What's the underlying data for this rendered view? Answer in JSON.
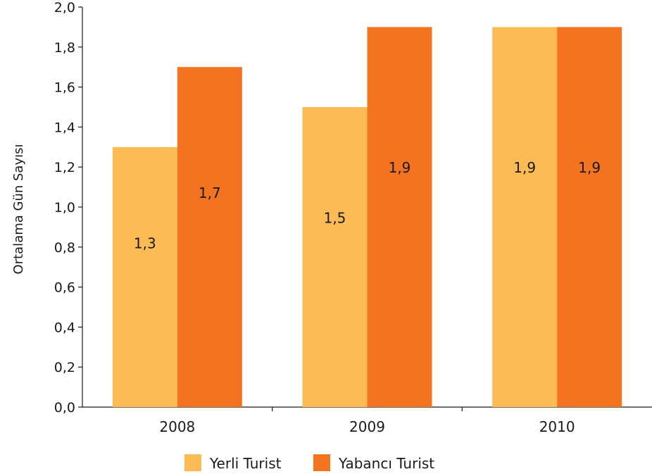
{
  "chart_data": {
    "type": "bar",
    "title": "",
    "xlabel": "",
    "ylabel": "Ortalama Gün Sayısı",
    "categories": [
      "2008",
      "2009",
      "2010"
    ],
    "series": [
      {
        "name": "Yerli Turist",
        "color": "#fdbb56",
        "values": [
          1.3,
          1.5,
          1.9
        ],
        "labels": [
          "1,3",
          "1,5",
          "1,9"
        ]
      },
      {
        "name": "Yabancı Turist",
        "color": "#f37321",
        "values": [
          1.7,
          1.9,
          1.9
        ],
        "labels": [
          "1,7",
          "1,9",
          "1,9"
        ]
      }
    ],
    "ylim": [
      0,
      2.0
    ],
    "yticks": [
      0,
      0.2,
      0.4,
      0.6,
      0.8,
      1.0,
      1.2,
      1.4,
      1.6,
      1.8,
      2.0
    ],
    "ytick_labels": [
      "0,0",
      "0,2",
      "0,4",
      "0,6",
      "0,8",
      "1,0",
      "1,2",
      "1,4",
      "1,6",
      "1,8",
      "2,0"
    ],
    "grid": false,
    "legend_position": "bottom-center"
  }
}
